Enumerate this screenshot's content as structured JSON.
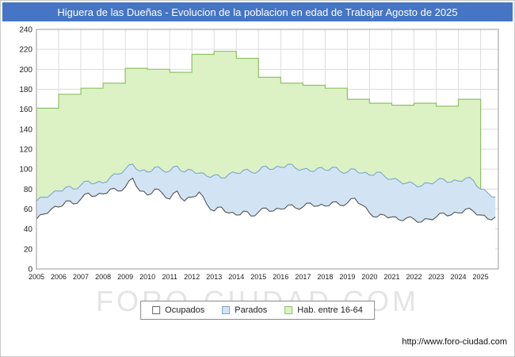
{
  "title": "Higuera de las Dueñas - Evolucion de la poblacion en edad de Trabajar Agosto de 2025",
  "watermark": "FORO-CIUDAD.COM",
  "footer": {
    "url": "http://www.foro-ciudad.com"
  },
  "colors": {
    "title_bar": "#4575c4",
    "grid": "#dcdcdc",
    "plot_border": "#9a9a9a"
  },
  "legend": [
    {
      "label": "Ocupados",
      "fill": "#ffffff",
      "stroke": "#666666"
    },
    {
      "label": "Parados",
      "fill": "#d2e4f4",
      "stroke": "#7da6cd"
    },
    {
      "label": "Hab. entre 16-64",
      "fill": "#dcf2c4",
      "stroke": "#8fc163"
    }
  ],
  "chart_data": {
    "type": "area",
    "title": "Higuera de las Dueñas - Evolucion de la poblacion en edad de Trabajar Agosto de 2025",
    "xlabel": "",
    "ylabel": "",
    "ylim": [
      0,
      240
    ],
    "y_ticks": [
      0,
      20,
      40,
      60,
      80,
      100,
      120,
      140,
      160,
      180,
      200,
      220,
      240
    ],
    "x_ticks": [
      2005,
      2006,
      2007,
      2008,
      2009,
      2010,
      2011,
      2012,
      2013,
      2014,
      2015,
      2016,
      2017,
      2018,
      2019,
      2020,
      2021,
      2022,
      2023,
      2024,
      2025
    ],
    "x_domain": [
      2005,
      2025.8
    ],
    "grid": true,
    "legend_position": "bottom",
    "series": [
      {
        "name": "Hab. entre 16-64",
        "style": "step-annual",
        "fill": "#dcf2c4",
        "stroke": "#8fc163",
        "years": [
          2005,
          2006,
          2007,
          2008,
          2009,
          2010,
          2011,
          2012,
          2013,
          2014,
          2015,
          2016,
          2017,
          2018,
          2019,
          2020,
          2021,
          2022,
          2023,
          2024
        ],
        "values": [
          161,
          175,
          181,
          186,
          201,
          200,
          197,
          215,
          218,
          211,
          192,
          186,
          184,
          181,
          170,
          166,
          164,
          166,
          163,
          170
        ]
      },
      {
        "name": "Parados",
        "style": "line-monthly",
        "fill": "#d2e4f4",
        "stroke": "#7da6cd",
        "x_start": 2005,
        "x_step": 0.3333,
        "values": [
          68,
          72,
          75,
          78,
          82,
          80,
          84,
          88,
          86,
          86,
          92,
          95,
          100,
          105,
          98,
          97,
          102,
          99,
          98,
          103,
          97,
          99,
          96,
          93,
          94,
          91,
          95,
          96,
          99,
          97,
          98,
          103,
          100,
          102,
          105,
          101,
          100,
          98,
          101,
          99,
          102,
          98,
          97,
          100,
          96,
          94,
          97,
          93,
          90,
          88,
          86,
          85,
          83,
          86,
          88,
          90,
          87,
          88,
          91,
          89,
          80,
          76,
          72
        ]
      },
      {
        "name": "Ocupados",
        "style": "line-monthly",
        "fill": "#ffffff",
        "stroke": "#555555",
        "x_start": 2005,
        "x_step": 0.3333,
        "values": [
          50,
          55,
          60,
          62,
          68,
          65,
          70,
          76,
          73,
          75,
          80,
          78,
          82,
          91,
          78,
          74,
          80,
          76,
          70,
          78,
          68,
          72,
          77,
          65,
          58,
          62,
          56,
          54,
          58,
          53,
          57,
          61,
          58,
          60,
          64,
          61,
          62,
          66,
          63,
          63,
          67,
          64,
          66,
          71,
          64,
          56,
          52,
          54,
          52,
          49,
          51,
          50,
          47,
          50,
          52,
          56,
          54,
          56,
          60,
          58,
          54,
          50,
          52
        ]
      }
    ]
  }
}
